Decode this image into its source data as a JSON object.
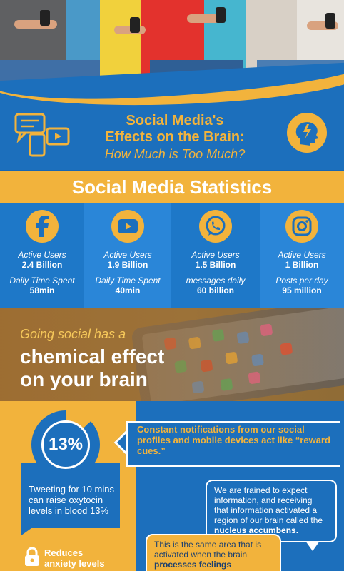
{
  "title": {
    "line1": "Social Media's",
    "line2": "Effects on the Brain:",
    "line3": "How Much is Too Much?"
  },
  "stats_heading": "Social Media Statistics",
  "stats": [
    {
      "icon": "facebook-icon",
      "label1": "Active Users",
      "value1": "2.4 Billion",
      "label2": "Daily Time Spent",
      "value2": "58min"
    },
    {
      "icon": "youtube-icon",
      "label1": "Active Users",
      "value1": "1.9 Billion",
      "label2": "Daily Time Spent",
      "value2": "40min"
    },
    {
      "icon": "whatsapp-icon",
      "label1": "Active Users",
      "value1": "1.5 Billion",
      "label2": "messages daily",
      "value2": "60 billion"
    },
    {
      "icon": "instagram-icon",
      "label1": "Active Users",
      "value1": "1 Billion",
      "label2": "Posts per day",
      "value2": "95 million"
    }
  ],
  "chemical": {
    "line1": "Going social has a",
    "line2": "chemical effect",
    "line3": "on your brain"
  },
  "oxytocin": {
    "percent_label": "13%",
    "percent_value": 13,
    "text": "Tweeting for 10 mins can raise oxytocin levels in blood 13%"
  },
  "anxiety": {
    "line1": "Reduces",
    "line2": "anxiety levels"
  },
  "notifications": "Constant notifications from our social profiles and mobile devices act like “reward cues.”",
  "bubble1": {
    "text": "We are trained to expect information, and receiving that information activated a region of our brain called the ",
    "bold": "nucleus accumbens."
  },
  "bubble2": {
    "text": "This is the same area that is activated when the brain ",
    "bold": "processes feelings"
  },
  "colors": {
    "accent": "#f2b33c",
    "blue": "#1c6fbc"
  }
}
